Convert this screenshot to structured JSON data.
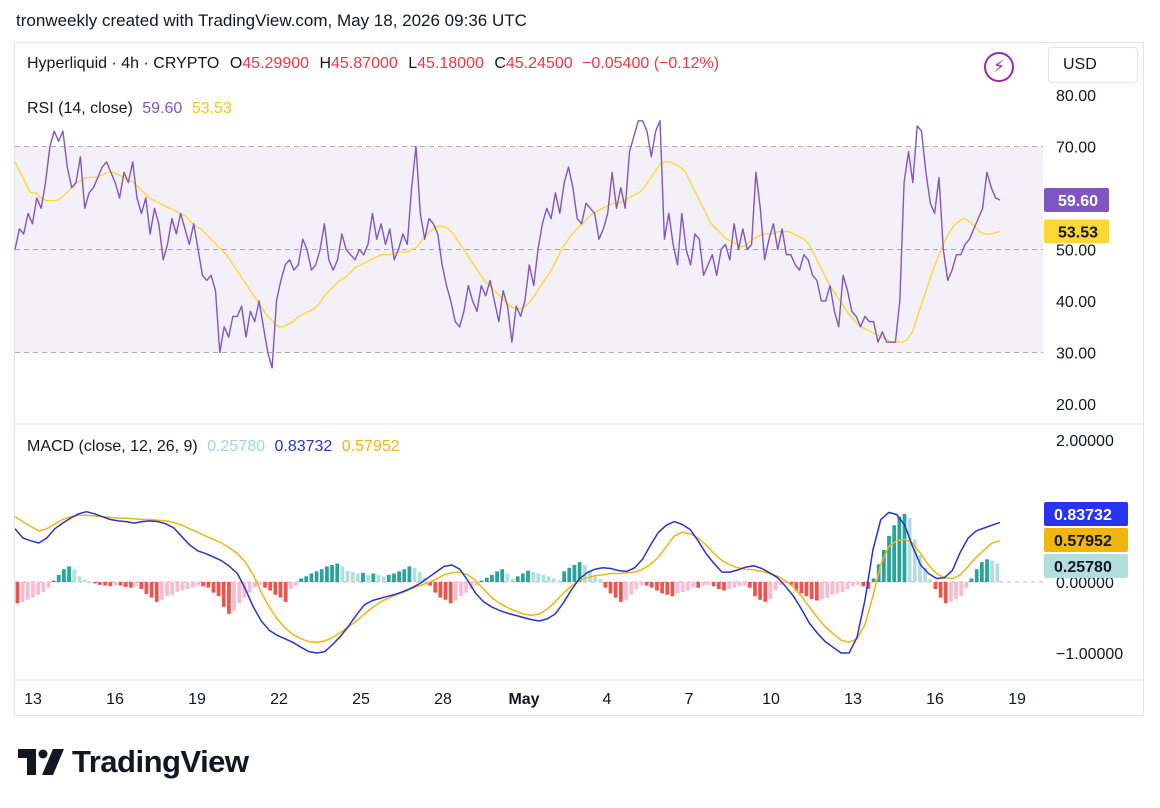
{
  "caption": "tronweekly created with TradingView.com, May 18, 2026 09:36 UTC",
  "header": {
    "symbol": "Hyperliquid · 4h · CRYPTO",
    "open_label": "O",
    "open": "45.29900",
    "high_label": "H",
    "high": "45.87000",
    "low_label": "L",
    "low": "45.18000",
    "close_label": "C",
    "close": "45.24500",
    "change": "−0.05400 (−0.12%)",
    "currency": "USD",
    "bolt_icon": "lightning-icon"
  },
  "rsi_legend": {
    "title": "RSI (14, close)",
    "rsi_value": "59.60",
    "ma_value": "53.53"
  },
  "macd_legend": {
    "title": "MACD (close, 12, 26, 9)",
    "hist_value": "0.25780",
    "macd_value": "0.83732",
    "signal_value": "0.57952"
  },
  "brand": {
    "name": "TradingView",
    "logo_icon": "tradingview-logo-icon"
  },
  "colors": {
    "rsi_line": "#7e57c2",
    "rsi_ma": "#fdd835",
    "rsi_band": "#7e57c2",
    "macd_line": "#2933c8",
    "signal_line": "#f2b50e",
    "hist_pos_strong": "#26a69a",
    "hist_pos_weak": "#b2dfdb",
    "hist_neg_strong": "#ef5350",
    "hist_neg_weak": "#f8bbd0",
    "change_red": "#f23645"
  },
  "chart_data": [
    {
      "type": "line",
      "title": "RSI (14, close)",
      "x_ticks": [
        "13",
        "16",
        "19",
        "22",
        "25",
        "28",
        "May",
        "4",
        "7",
        "10",
        "13",
        "16",
        "19"
      ],
      "y_ticks": [
        "80.00",
        "70.00",
        "50.00",
        "40.00",
        "30.00",
        "20.00"
      ],
      "ylim": [
        16.5,
        82
      ],
      "bands": [
        30,
        50,
        70
      ],
      "last_labels": {
        "rsi": "59.60",
        "ma": "53.53"
      },
      "series": [
        {
          "key": "rsi",
          "values": [
            50,
            54,
            53,
            57,
            55,
            60,
            58,
            63,
            70,
            73,
            71,
            73,
            66,
            62,
            63,
            68,
            58,
            61,
            62,
            64,
            66,
            67,
            65,
            63,
            60,
            65,
            63,
            67,
            60,
            57,
            60,
            53,
            58,
            55,
            48,
            51,
            56,
            53,
            57,
            54,
            51,
            55,
            50,
            45,
            44,
            45,
            42,
            30,
            35,
            33,
            37,
            37,
            39,
            33,
            38,
            36,
            40,
            35,
            30,
            27,
            40,
            44,
            47,
            48,
            46,
            47,
            52,
            50,
            46,
            47,
            50,
            55,
            48,
            46,
            48,
            53,
            50,
            49,
            48,
            50,
            49,
            51,
            57,
            52,
            55,
            51,
            54,
            48,
            50,
            53,
            51,
            62,
            70,
            57,
            52,
            56,
            55,
            53,
            47,
            43,
            40,
            36,
            35,
            38,
            43,
            40,
            38,
            43,
            41,
            44,
            40,
            36,
            42,
            39,
            32,
            39,
            37,
            40,
            47,
            43,
            50,
            55,
            58,
            56,
            61,
            57,
            63,
            66,
            62,
            56,
            55,
            59,
            58,
            57,
            52,
            54,
            57,
            65,
            58,
            62,
            58,
            69,
            72,
            75,
            75,
            73,
            68,
            73,
            75,
            52,
            57,
            51,
            47,
            57,
            50,
            47,
            53,
            52,
            45,
            47,
            49,
            45,
            50,
            51,
            48,
            55,
            50,
            54,
            50,
            51,
            65,
            58,
            48,
            52,
            55,
            50,
            54,
            49,
            49,
            47,
            46,
            49,
            48,
            45,
            44,
            40,
            40,
            43,
            38,
            35,
            45,
            42,
            38,
            37,
            35,
            37,
            36,
            36,
            32,
            34,
            32,
            32,
            32,
            40,
            63,
            69,
            63,
            74,
            73,
            65,
            59,
            57,
            64,
            50,
            44,
            46,
            49,
            49,
            51,
            52,
            54,
            56,
            58,
            65,
            62,
            60,
            59.6
          ]
        },
        {
          "key": "ma",
          "values": [
            67,
            65,
            63,
            61,
            61,
            60,
            59.5,
            59.5,
            59.5,
            60,
            61,
            62,
            63,
            63.5,
            64,
            64,
            64,
            64.5,
            65,
            65,
            64.5,
            64,
            63.5,
            63,
            62,
            61,
            60,
            59.5,
            59,
            58.5,
            58,
            57.5,
            57,
            56.5,
            55.5,
            54.5,
            54,
            53,
            52,
            51,
            50,
            49,
            47.5,
            46,
            44.5,
            43,
            41.5,
            40,
            38.5,
            37,
            36,
            35,
            35,
            35.5,
            36,
            37,
            37.5,
            38,
            38.5,
            39.5,
            41,
            42,
            43,
            44,
            44.5,
            45.5,
            46.5,
            47,
            47.5,
            48,
            48.5,
            49,
            49,
            49,
            49.5,
            49.5,
            49.5,
            50,
            50.5,
            52,
            53,
            54,
            54.5,
            54.5,
            54,
            53,
            51.5,
            50,
            48.5,
            47,
            45.5,
            44,
            43,
            42,
            41,
            40,
            39,
            38.5,
            38.5,
            39,
            40,
            41.5,
            43,
            44.5,
            46,
            48,
            50,
            51.5,
            53,
            54,
            55,
            56,
            57,
            57.5,
            58,
            58.5,
            59,
            59,
            59.5,
            60,
            60.5,
            61,
            62,
            63.5,
            65,
            66.5,
            67,
            67,
            66.5,
            66,
            65,
            63,
            61,
            59,
            57,
            55,
            54,
            53,
            52,
            51.5,
            51,
            50.5,
            51,
            52,
            52.5,
            53,
            53,
            53,
            53.5,
            53.5,
            53.5,
            53,
            52.5,
            52,
            51,
            49,
            47,
            45,
            43,
            41.5,
            40,
            38.5,
            37,
            36,
            35,
            34.5,
            34,
            33.5,
            33,
            32.5,
            32,
            32,
            32,
            32.5,
            34,
            37,
            40,
            43,
            46,
            48.5,
            51,
            53,
            54.5,
            55.5,
            56,
            55.5,
            54.5,
            53.5,
            53,
            53,
            53.2,
            53.53
          ]
        }
      ]
    },
    {
      "type": "line",
      "title": "MACD (close, 12, 26, 9)",
      "x_ticks": [
        "13",
        "16",
        "19",
        "22",
        "25",
        "28",
        "May",
        "4",
        "7",
        "10",
        "13",
        "16",
        "19"
      ],
      "y_ticks": [
        "2.00000",
        "0.00000",
        "−1.00000"
      ],
      "ylim": [
        -1.31,
        2.12
      ],
      "last_labels": {
        "macd": "0.83732",
        "signal": "0.57952",
        "histogram": "0.25780"
      },
      "series": [
        {
          "key": "macd",
          "values": [
            0.75,
            0.62,
            0.58,
            0.55,
            0.62,
            0.75,
            0.83,
            0.9,
            0.96,
            0.99,
            0.96,
            0.92,
            0.88,
            0.86,
            0.85,
            0.83,
            0.85,
            0.86,
            0.85,
            0.82,
            0.76,
            0.64,
            0.52,
            0.44,
            0.4,
            0.35,
            0.3,
            0.22,
            0.12,
            -0.1,
            -0.35,
            -0.55,
            -0.68,
            -0.75,
            -0.8,
            -0.85,
            -0.92,
            -0.98,
            -1.0,
            -0.98,
            -0.88,
            -0.76,
            -0.62,
            -0.46,
            -0.32,
            -0.26,
            -0.23,
            -0.2,
            -0.17,
            -0.13,
            -0.08,
            -0.02,
            0.06,
            0.14,
            0.22,
            0.24,
            0.18,
            0.02,
            -0.16,
            -0.28,
            -0.35,
            -0.4,
            -0.44,
            -0.47,
            -0.5,
            -0.53,
            -0.55,
            -0.52,
            -0.45,
            -0.3,
            -0.12,
            0.04,
            0.13,
            0.18,
            0.2,
            0.19,
            0.16,
            0.15,
            0.2,
            0.32,
            0.52,
            0.7,
            0.8,
            0.85,
            0.81,
            0.74,
            0.58,
            0.4,
            0.26,
            0.14,
            0.14,
            0.17,
            0.21,
            0.23,
            0.19,
            0.13,
            0.06,
            -0.06,
            -0.2,
            -0.38,
            -0.58,
            -0.72,
            -0.84,
            -0.92,
            -1.0,
            -1.0,
            -0.78,
            -0.25,
            0.45,
            0.88,
            0.98,
            0.95,
            0.8,
            0.5,
            0.24,
            0.12,
            0.05,
            0.06,
            0.16,
            0.42,
            0.62,
            0.72,
            0.76,
            0.8,
            0.84
          ]
        },
        {
          "key": "signal",
          "values": [
            0.92,
            0.85,
            0.78,
            0.72,
            0.75,
            0.82,
            0.88,
            0.92,
            0.94,
            0.94,
            0.93,
            0.92,
            0.91,
            0.9,
            0.9,
            0.89,
            0.88,
            0.88,
            0.87,
            0.86,
            0.84,
            0.8,
            0.75,
            0.7,
            0.65,
            0.6,
            0.55,
            0.48,
            0.4,
            0.28,
            0.1,
            -0.15,
            -0.35,
            -0.52,
            -0.65,
            -0.74,
            -0.8,
            -0.84,
            -0.85,
            -0.83,
            -0.78,
            -0.71,
            -0.63,
            -0.55,
            -0.45,
            -0.36,
            -0.28,
            -0.23,
            -0.18,
            -0.14,
            -0.09,
            -0.05,
            -0.01,
            0.04,
            0.1,
            0.13,
            0.14,
            0.1,
            0.02,
            -0.1,
            -0.22,
            -0.3,
            -0.36,
            -0.41,
            -0.45,
            -0.47,
            -0.45,
            -0.38,
            -0.28,
            -0.16,
            -0.06,
            0.02,
            0.06,
            0.09,
            0.1,
            0.12,
            0.12,
            0.13,
            0.14,
            0.18,
            0.25,
            0.35,
            0.5,
            0.65,
            0.7,
            0.68,
            0.62,
            0.52,
            0.4,
            0.3,
            0.24,
            0.2,
            0.18,
            0.17,
            0.15,
            0.12,
            0.08,
            0.02,
            -0.07,
            -0.2,
            -0.35,
            -0.5,
            -0.63,
            -0.73,
            -0.82,
            -0.85,
            -0.8,
            -0.6,
            -0.2,
            0.25,
            0.5,
            0.58,
            0.6,
            0.55,
            0.4,
            0.24,
            0.12,
            0.06,
            0.05,
            0.1,
            0.22,
            0.35,
            0.45,
            0.55,
            0.58
          ]
        },
        {
          "key": "histogram",
          "values": [
            -0.3,
            -0.28,
            -0.25,
            -0.22,
            -0.18,
            -0.14,
            -0.08,
            0.02,
            0.1,
            0.18,
            0.22,
            0.18,
            0.08,
            0.03,
            0.0,
            -0.02,
            -0.04,
            -0.05,
            -0.06,
            -0.05,
            -0.05,
            -0.07,
            -0.08,
            -0.06,
            -0.1,
            -0.17,
            -0.22,
            -0.28,
            -0.25,
            -0.2,
            -0.18,
            -0.14,
            -0.12,
            -0.1,
            -0.08,
            -0.05,
            -0.06,
            -0.08,
            -0.15,
            -0.2,
            -0.35,
            -0.45,
            -0.4,
            -0.3,
            -0.22,
            -0.15,
            -0.08,
            -0.04,
            -0.08,
            -0.12,
            -0.18,
            -0.22,
            -0.28,
            -0.1,
            -0.05,
            0.05,
            0.08,
            0.12,
            0.15,
            0.18,
            0.22,
            0.24,
            0.26,
            0.22,
            0.16,
            0.14,
            0.12,
            0.13,
            0.1,
            0.12,
            0.1,
            0.08,
            0.1,
            0.12,
            0.15,
            0.18,
            0.22,
            0.2,
            0.14,
            0.06,
            -0.05,
            -0.15,
            -0.22,
            -0.25,
            -0.3,
            -0.26,
            -0.2,
            -0.15,
            -0.1,
            -0.05,
            0.02,
            0.06,
            0.1,
            0.15,
            0.18,
            0.12,
            0.05,
            0.08,
            0.12,
            0.16,
            0.14,
            0.12,
            0.1,
            0.08,
            0.05,
            0.02,
            0.15,
            0.2,
            0.24,
            0.28,
            0.24,
            0.16,
            0.08,
            0.04,
            -0.08,
            -0.16,
            -0.22,
            -0.28,
            -0.26,
            -0.18,
            -0.1,
            -0.05,
            -0.05,
            -0.08,
            -0.12,
            -0.16,
            -0.18,
            -0.2,
            -0.16,
            -0.14,
            -0.12,
            -0.08,
            -0.08,
            -0.05,
            -0.04,
            -0.06,
            -0.1,
            -0.12,
            -0.1,
            -0.08,
            -0.06,
            -0.05,
            -0.08,
            -0.2,
            -0.25,
            -0.28,
            -0.24,
            -0.12,
            -0.04,
            -0.02,
            -0.04,
            -0.12,
            -0.16,
            -0.2,
            -0.24,
            -0.26,
            -0.24,
            -0.22,
            -0.18,
            -0.16,
            -0.14,
            -0.1,
            -0.06,
            -0.04,
            -0.06,
            -0.1,
            0.05,
            0.25,
            0.45,
            0.65,
            0.8,
            0.92,
            0.96,
            0.9,
            0.6,
            0.38,
            0.2,
            0.04,
            -0.1,
            -0.22,
            -0.3,
            -0.28,
            -0.24,
            -0.2,
            -0.08,
            0.05,
            0.18,
            0.28,
            0.32,
            0.3,
            0.26
          ]
        }
      ]
    }
  ]
}
